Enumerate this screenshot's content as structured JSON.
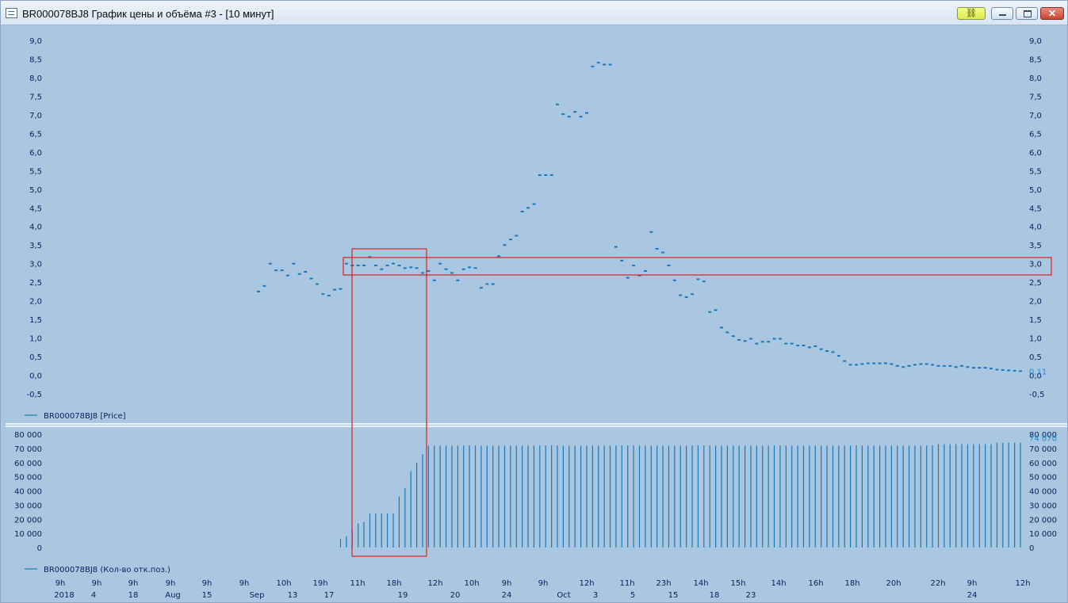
{
  "window": {
    "title": "BR000078BJ8 График цены и объёма #3 - [10 минут]",
    "close_label": "✕",
    "link_icon": "link-icon"
  },
  "colors": {
    "background": "#aac7e2",
    "series": "#1a79b8",
    "label_text": "#0a1e5c",
    "last_value": "#1a8fd0",
    "highlight": "#e0201e",
    "separator": "#ffffff"
  },
  "chart_data": [
    {
      "type": "candlestick",
      "legend": "BR000078BJ8 [Price]",
      "ylim": [
        -0.5,
        9.0
      ],
      "yticks": [
        "9,0",
        "8,5",
        "8,0",
        "7,5",
        "7,0",
        "6,5",
        "6,0",
        "5,5",
        "5,0",
        "4,5",
        "4,0",
        "3,5",
        "3,0",
        "2,5",
        "2,0",
        "1,5",
        "1,0",
        "0,5",
        "0,0",
        "-0,5"
      ],
      "last_value_label": "0,11",
      "points": [
        {
          "i": 0,
          "y": 2.25
        },
        {
          "i": 1,
          "y": 2.4
        },
        {
          "i": 2,
          "y": 3.0
        },
        {
          "i": 3,
          "y": 2.82
        },
        {
          "i": 4,
          "y": 2.82
        },
        {
          "i": 5,
          "y": 2.68
        },
        {
          "i": 6,
          "y": 3.0
        },
        {
          "i": 7,
          "y": 2.72
        },
        {
          "i": 8,
          "y": 2.78
        },
        {
          "i": 9,
          "y": 2.6
        },
        {
          "i": 10,
          "y": 2.45
        },
        {
          "i": 11,
          "y": 2.18
        },
        {
          "i": 12,
          "y": 2.14
        },
        {
          "i": 13,
          "y": 2.3
        },
        {
          "i": 14,
          "y": 2.32
        },
        {
          "i": 15,
          "y": 3.0
        },
        {
          "i": 16,
          "y": 2.95
        },
        {
          "i": 17,
          "y": 2.95
        },
        {
          "i": 18,
          "y": 2.95
        },
        {
          "i": 19,
          "y": 3.18
        },
        {
          "i": 20,
          "y": 2.95
        },
        {
          "i": 21,
          "y": 2.85
        },
        {
          "i": 22,
          "y": 2.95
        },
        {
          "i": 23,
          "y": 3.0
        },
        {
          "i": 24,
          "y": 2.95
        },
        {
          "i": 25,
          "y": 2.88
        },
        {
          "i": 26,
          "y": 2.9
        },
        {
          "i": 27,
          "y": 2.88
        },
        {
          "i": 28,
          "y": 2.75
        },
        {
          "i": 29,
          "y": 2.8
        },
        {
          "i": 30,
          "y": 2.55
        },
        {
          "i": 31,
          "y": 3.0
        },
        {
          "i": 32,
          "y": 2.85
        },
        {
          "i": 33,
          "y": 2.75
        },
        {
          "i": 34,
          "y": 2.55
        },
        {
          "i": 35,
          "y": 2.85
        },
        {
          "i": 36,
          "y": 2.9
        },
        {
          "i": 37,
          "y": 2.88
        },
        {
          "i": 38,
          "y": 2.35
        },
        {
          "i": 39,
          "y": 2.45
        },
        {
          "i": 40,
          "y": 2.45
        },
        {
          "i": 41,
          "y": 3.2
        },
        {
          "i": 42,
          "y": 3.5
        },
        {
          "i": 43,
          "y": 3.65
        },
        {
          "i": 44,
          "y": 3.75
        },
        {
          "i": 45,
          "y": 4.4
        },
        {
          "i": 46,
          "y": 4.5
        },
        {
          "i": 47,
          "y": 4.6
        },
        {
          "i": 48,
          "y": 5.38
        },
        {
          "i": 49,
          "y": 5.38
        },
        {
          "i": 50,
          "y": 5.38
        },
        {
          "i": 51,
          "y": 7.28
        },
        {
          "i": 52,
          "y": 7.02
        },
        {
          "i": 53,
          "y": 6.95
        },
        {
          "i": 54,
          "y": 7.08
        },
        {
          "i": 55,
          "y": 6.95
        },
        {
          "i": 56,
          "y": 7.05
        },
        {
          "i": 57,
          "y": 8.3
        },
        {
          "i": 58,
          "y": 8.4
        },
        {
          "i": 59,
          "y": 8.35
        },
        {
          "i": 60,
          "y": 8.35
        },
        {
          "i": 61,
          "y": 3.45
        },
        {
          "i": 62,
          "y": 3.08
        },
        {
          "i": 63,
          "y": 2.62
        },
        {
          "i": 64,
          "y": 2.95
        },
        {
          "i": 65,
          "y": 2.68
        },
        {
          "i": 66,
          "y": 2.8
        },
        {
          "i": 67,
          "y": 3.85
        },
        {
          "i": 68,
          "y": 3.4
        },
        {
          "i": 69,
          "y": 3.3
        },
        {
          "i": 70,
          "y": 2.95
        },
        {
          "i": 71,
          "y": 2.55
        },
        {
          "i": 72,
          "y": 2.15
        },
        {
          "i": 73,
          "y": 2.1
        },
        {
          "i": 74,
          "y": 2.18
        },
        {
          "i": 75,
          "y": 2.58
        },
        {
          "i": 76,
          "y": 2.52
        },
        {
          "i": 77,
          "y": 1.7
        },
        {
          "i": 78,
          "y": 1.75
        },
        {
          "i": 79,
          "y": 1.28
        },
        {
          "i": 80,
          "y": 1.15
        },
        {
          "i": 81,
          "y": 1.05
        },
        {
          "i": 82,
          "y": 0.95
        },
        {
          "i": 83,
          "y": 0.92
        },
        {
          "i": 84,
          "y": 0.98
        },
        {
          "i": 85,
          "y": 0.85
        },
        {
          "i": 86,
          "y": 0.9
        },
        {
          "i": 87,
          "y": 0.9
        },
        {
          "i": 88,
          "y": 0.98
        },
        {
          "i": 89,
          "y": 0.98
        },
        {
          "i": 90,
          "y": 0.85
        },
        {
          "i": 91,
          "y": 0.85
        },
        {
          "i": 92,
          "y": 0.8
        },
        {
          "i": 93,
          "y": 0.8
        },
        {
          "i": 94,
          "y": 0.75
        },
        {
          "i": 95,
          "y": 0.78
        },
        {
          "i": 96,
          "y": 0.7
        },
        {
          "i": 97,
          "y": 0.65
        },
        {
          "i": 98,
          "y": 0.62
        },
        {
          "i": 99,
          "y": 0.52
        },
        {
          "i": 100,
          "y": 0.38
        },
        {
          "i": 101,
          "y": 0.28
        },
        {
          "i": 102,
          "y": 0.28
        },
        {
          "i": 103,
          "y": 0.3
        },
        {
          "i": 104,
          "y": 0.32
        },
        {
          "i": 105,
          "y": 0.32
        },
        {
          "i": 106,
          "y": 0.32
        },
        {
          "i": 107,
          "y": 0.32
        },
        {
          "i": 108,
          "y": 0.3
        },
        {
          "i": 109,
          "y": 0.25
        },
        {
          "i": 110,
          "y": 0.22
        },
        {
          "i": 111,
          "y": 0.25
        },
        {
          "i": 112,
          "y": 0.28
        },
        {
          "i": 113,
          "y": 0.3
        },
        {
          "i": 114,
          "y": 0.3
        },
        {
          "i": 115,
          "y": 0.28
        },
        {
          "i": 116,
          "y": 0.25
        },
        {
          "i": 117,
          "y": 0.25
        },
        {
          "i": 118,
          "y": 0.25
        },
        {
          "i": 119,
          "y": 0.22
        },
        {
          "i": 120,
          "y": 0.25
        },
        {
          "i": 121,
          "y": 0.22
        },
        {
          "i": 122,
          "y": 0.2
        },
        {
          "i": 123,
          "y": 0.2
        },
        {
          "i": 124,
          "y": 0.2
        },
        {
          "i": 125,
          "y": 0.18
        },
        {
          "i": 126,
          "y": 0.15
        },
        {
          "i": 127,
          "y": 0.14
        },
        {
          "i": 128,
          "y": 0.13
        },
        {
          "i": 129,
          "y": 0.12
        },
        {
          "i": 130,
          "y": 0.11
        }
      ]
    },
    {
      "type": "bar",
      "legend": "BR000078BJ8 (Кол-во отк.поз.)",
      "ylim": [
        0,
        80000
      ],
      "yticks": [
        "80 000",
        "70 000",
        "60 000",
        "50 000",
        "40 000",
        "30 000",
        "20 000",
        "10 000",
        "0"
      ],
      "last_value_label": "74 070",
      "bars": [
        {
          "i": 14,
          "v": 6000
        },
        {
          "i": 15,
          "v": 8000
        },
        {
          "i": 16,
          "v": 12000
        },
        {
          "i": 17,
          "v": 17000
        },
        {
          "i": 18,
          "v": 18000
        },
        {
          "i": 19,
          "v": 24000
        },
        {
          "i": 20,
          "v": 24000
        },
        {
          "i": 21,
          "v": 24000
        },
        {
          "i": 22,
          "v": 24000
        },
        {
          "i": 23,
          "v": 24000
        },
        {
          "i": 24,
          "v": 36000
        },
        {
          "i": 25,
          "v": 42000
        },
        {
          "i": 26,
          "v": 54000
        },
        {
          "i": 27,
          "v": 60000
        },
        {
          "i": 28,
          "v": 66000
        },
        {
          "i": 29,
          "v": 72000
        },
        {
          "i": 30,
          "v": 72000
        },
        {
          "i": 31,
          "v": 72000
        },
        {
          "i": 32,
          "v": 72000
        },
        {
          "i": 33,
          "v": 72000
        },
        {
          "i": 34,
          "v": 72000
        },
        {
          "i": 35,
          "v": 72000
        },
        {
          "i": 36,
          "v": 72000
        },
        {
          "i": 37,
          "v": 72000
        },
        {
          "i": 38,
          "v": 72000
        },
        {
          "i": 39,
          "v": 72000
        },
        {
          "i": 40,
          "v": 72000
        },
        {
          "i": 41,
          "v": 72000
        },
        {
          "i": 42,
          "v": 72000
        },
        {
          "i": 43,
          "v": 72000
        },
        {
          "i": 44,
          "v": 72000
        },
        {
          "i": 45,
          "v": 72000
        },
        {
          "i": 46,
          "v": 72000
        },
        {
          "i": 47,
          "v": 72000
        },
        {
          "i": 48,
          "v": 72000
        },
        {
          "i": 49,
          "v": 72000
        },
        {
          "i": 50,
          "v": 72000
        },
        {
          "i": 51,
          "v": 72000
        },
        {
          "i": 52,
          "v": 72000
        },
        {
          "i": 53,
          "v": 72000
        },
        {
          "i": 54,
          "v": 72000
        },
        {
          "i": 55,
          "v": 72000
        },
        {
          "i": 56,
          "v": 72000
        },
        {
          "i": 57,
          "v": 72000
        },
        {
          "i": 58,
          "v": 72000
        },
        {
          "i": 59,
          "v": 72000
        },
        {
          "i": 60,
          "v": 72000
        },
        {
          "i": 61,
          "v": 72000
        },
        {
          "i": 62,
          "v": 72000
        },
        {
          "i": 63,
          "v": 72000
        },
        {
          "i": 64,
          "v": 72000
        },
        {
          "i": 65,
          "v": 72000
        },
        {
          "i": 66,
          "v": 72000
        },
        {
          "i": 67,
          "v": 72000
        },
        {
          "i": 68,
          "v": 72000
        },
        {
          "i": 69,
          "v": 72000
        },
        {
          "i": 70,
          "v": 72000
        },
        {
          "i": 71,
          "v": 72000
        },
        {
          "i": 72,
          "v": 72000
        },
        {
          "i": 73,
          "v": 72000
        },
        {
          "i": 74,
          "v": 72000
        },
        {
          "i": 75,
          "v": 72000
        },
        {
          "i": 76,
          "v": 72000
        },
        {
          "i": 77,
          "v": 72000
        },
        {
          "i": 78,
          "v": 72000
        },
        {
          "i": 79,
          "v": 72000
        },
        {
          "i": 80,
          "v": 72000
        },
        {
          "i": 81,
          "v": 72000
        },
        {
          "i": 82,
          "v": 72000
        },
        {
          "i": 83,
          "v": 72000
        },
        {
          "i": 84,
          "v": 72000
        },
        {
          "i": 85,
          "v": 72000
        },
        {
          "i": 86,
          "v": 72000
        },
        {
          "i": 87,
          "v": 72000
        },
        {
          "i": 88,
          "v": 72000
        },
        {
          "i": 89,
          "v": 72000
        },
        {
          "i": 90,
          "v": 72000
        },
        {
          "i": 91,
          "v": 72000
        },
        {
          "i": 92,
          "v": 72000
        },
        {
          "i": 93,
          "v": 72000
        },
        {
          "i": 94,
          "v": 72000
        },
        {
          "i": 95,
          "v": 72000
        },
        {
          "i": 96,
          "v": 72000
        },
        {
          "i": 97,
          "v": 72000
        },
        {
          "i": 98,
          "v": 72000
        },
        {
          "i": 99,
          "v": 72000
        },
        {
          "i": 100,
          "v": 72000
        },
        {
          "i": 101,
          "v": 72000
        },
        {
          "i": 102,
          "v": 72000
        },
        {
          "i": 103,
          "v": 72000
        },
        {
          "i": 104,
          "v": 72000
        },
        {
          "i": 105,
          "v": 72000
        },
        {
          "i": 106,
          "v": 72000
        },
        {
          "i": 107,
          "v": 72000
        },
        {
          "i": 108,
          "v": 72000
        },
        {
          "i": 109,
          "v": 72000
        },
        {
          "i": 110,
          "v": 72000
        },
        {
          "i": 111,
          "v": 72000
        },
        {
          "i": 112,
          "v": 72000
        },
        {
          "i": 113,
          "v": 72000
        },
        {
          "i": 114,
          "v": 72000
        },
        {
          "i": 115,
          "v": 72000
        },
        {
          "i": 116,
          "v": 73000
        },
        {
          "i": 117,
          "v": 73000
        },
        {
          "i": 118,
          "v": 73000
        },
        {
          "i": 119,
          "v": 73000
        },
        {
          "i": 120,
          "v": 73000
        },
        {
          "i": 121,
          "v": 73000
        },
        {
          "i": 122,
          "v": 73000
        },
        {
          "i": 123,
          "v": 73000
        },
        {
          "i": 124,
          "v": 73000
        },
        {
          "i": 125,
          "v": 73000
        },
        {
          "i": 126,
          "v": 74000
        },
        {
          "i": 127,
          "v": 74000
        },
        {
          "i": 128,
          "v": 74000
        },
        {
          "i": 129,
          "v": 74000
        },
        {
          "i": 130,
          "v": 74070
        }
      ]
    }
  ],
  "x_axis": {
    "top_row": [
      "9h",
      "9h",
      "9h",
      "9h",
      "9h",
      "9h",
      "10h",
      "19h",
      "11h",
      "18h",
      "12h",
      "10h",
      "9h",
      "9h",
      "12h",
      "11h",
      "23h",
      "14h",
      "15h",
      "14h",
      "16h",
      "18h",
      "20h",
      "22h",
      "9h",
      "12h"
    ],
    "bottom_row": [
      "2018",
      "4",
      "18",
      "Aug",
      "15",
      "Sep",
      "13",
      "17",
      "19",
      "20",
      "24",
      "Oct",
      "3",
      "5",
      "15",
      "18",
      "23",
      "24"
    ]
  }
}
